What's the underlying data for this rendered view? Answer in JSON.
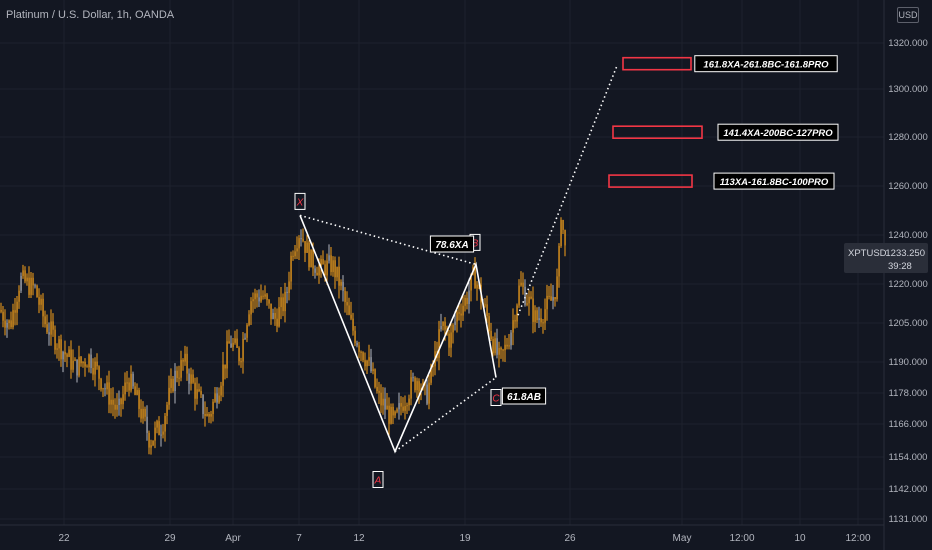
{
  "header": {
    "title": "Platinum / U.S. Dollar, 1h, OANDA",
    "currency_button": "USD"
  },
  "price_tag": {
    "symbol": "XPTUSD",
    "price": "1233.250",
    "countdown": "39:28",
    "color": "#2a2e39"
  },
  "colors": {
    "background": "#131722",
    "candle": "#f7a21b",
    "candle_dim": "#b2b5be",
    "pattern": "#ffffff",
    "target_box": "#f23645",
    "axis_text": "#b2b5be"
  },
  "chart_data": {
    "type": "candlestick",
    "yticks": [
      1131.0,
      1142.0,
      1154.0,
      1166.0,
      1178.0,
      1190.0,
      1205.0,
      1220.0,
      1240.0,
      1260.0,
      1280.0,
      1300.0,
      1320.0
    ],
    "ytick_labels": [
      "1131.000",
      "1142.000",
      "1154.000",
      "1166.000",
      "1178.000",
      "1190.000",
      "1205.000",
      "1220.000",
      "1240.000",
      "1260.000",
      "1280.000",
      "1300.000",
      "1320.000"
    ],
    "xtick_labels": [
      "22",
      "29",
      "Apr",
      "7",
      "12",
      "19",
      "26",
      "May",
      "12:00",
      "10",
      "12:00"
    ],
    "price_points": [
      [
        0,
        1210
      ],
      [
        10,
        1204
      ],
      [
        20,
        1222
      ],
      [
        35,
        1218
      ],
      [
        45,
        1205
      ],
      [
        60,
        1196
      ],
      [
        75,
        1188
      ],
      [
        90,
        1192
      ],
      [
        105,
        1180
      ],
      [
        118,
        1170
      ],
      [
        128,
        1184
      ],
      [
        138,
        1174
      ],
      [
        150,
        1160
      ],
      [
        162,
        1166
      ],
      [
        174,
        1184
      ],
      [
        184,
        1190
      ],
      [
        196,
        1178
      ],
      [
        208,
        1168
      ],
      [
        218,
        1180
      ],
      [
        230,
        1198
      ],
      [
        240,
        1192
      ],
      [
        250,
        1214
      ],
      [
        262,
        1216
      ],
      [
        274,
        1206
      ],
      [
        286,
        1214
      ],
      [
        292,
        1234
      ],
      [
        300,
        1242
      ],
      [
        310,
        1230
      ],
      [
        320,
        1226
      ],
      [
        332,
        1228
      ],
      [
        340,
        1220
      ],
      [
        350,
        1205
      ],
      [
        360,
        1196
      ],
      [
        370,
        1188
      ],
      [
        378,
        1176
      ],
      [
        386,
        1172
      ],
      [
        394,
        1166
      ],
      [
        402,
        1174
      ],
      [
        410,
        1180
      ],
      [
        418,
        1184
      ],
      [
        426,
        1176
      ],
      [
        434,
        1190
      ],
      [
        442,
        1204
      ],
      [
        450,
        1198
      ],
      [
        458,
        1210
      ],
      [
        466,
        1214
      ],
      [
        474,
        1224
      ],
      [
        480,
        1216
      ],
      [
        488,
        1206
      ],
      [
        494,
        1196
      ],
      [
        500,
        1190
      ],
      [
        506,
        1196
      ],
      [
        512,
        1204
      ],
      [
        520,
        1220
      ],
      [
        528,
        1214
      ],
      [
        536,
        1206
      ],
      [
        544,
        1210
      ],
      [
        552,
        1214
      ],
      [
        558,
        1222
      ],
      [
        561,
        1250
      ],
      [
        565,
        1234
      ]
    ],
    "pattern": {
      "points": [
        {
          "label": "X",
          "x": 300,
          "price": 1248
        },
        {
          "label": "A",
          "x": 395,
          "price": 1156
        },
        {
          "label": "B",
          "x": 476,
          "price": 1228
        },
        {
          "label": "C",
          "x": 496,
          "price": 1184
        }
      ],
      "ratio_labels": [
        "78.6XA",
        "61.8AB"
      ],
      "projection_price": 1311
    },
    "targets": [
      {
        "label": "161.8XA-261.8BC-161.8PRO",
        "price": 1311
      },
      {
        "label": "141.4XA-200BC-127PRO",
        "price": 1282
      },
      {
        "label": "113XA-161.8BC-100PRO",
        "price": 1262
      }
    ]
  }
}
